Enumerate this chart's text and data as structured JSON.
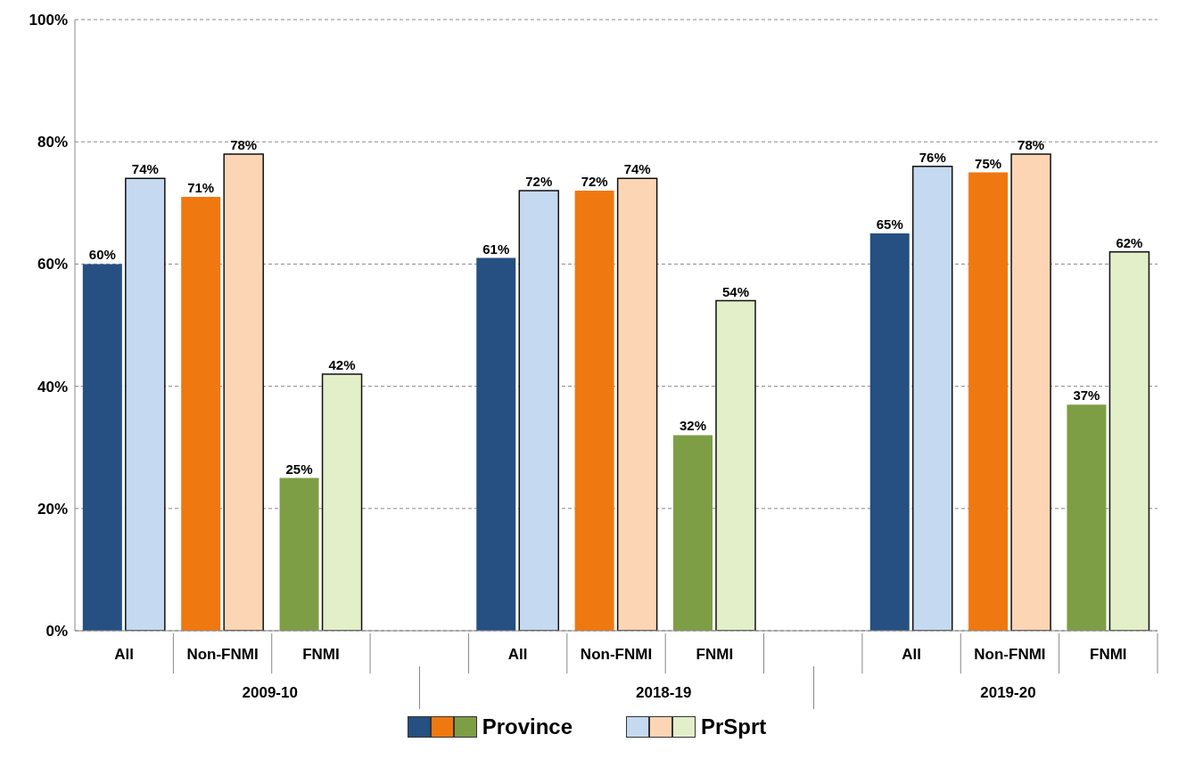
{
  "chart_data": {
    "type": "bar",
    "categories": [
      "All",
      "Non-FNMI",
      "FNMI",
      null,
      "All",
      "Non-FNMI",
      "FNMI",
      null,
      "All",
      "Non-FNMI",
      "FNMI"
    ],
    "series": [
      {
        "name": "Province",
        "colors": [
          "#264f82",
          "#f07810",
          "#7e9e45",
          null,
          "#264f82",
          "#f07810",
          "#7e9e45",
          null,
          "#264f82",
          "#f07810",
          "#7e9e45"
        ],
        "values": [
          60,
          71,
          25,
          null,
          61,
          72,
          32,
          null,
          65,
          75,
          37
        ],
        "value_labels": [
          "60%",
          "71%",
          "25%",
          null,
          "61%",
          "72%",
          "32%",
          null,
          "65%",
          "75%",
          "37%"
        ]
      },
      {
        "name": "PrSprt",
        "colors": [
          "#c5d9f1",
          "#fcd5b5",
          "#e2efc9",
          null,
          "#c5d9f1",
          "#fcd5b5",
          "#e2efc9",
          null,
          "#c5d9f1",
          "#fcd5b5",
          "#e2efc9"
        ],
        "values": [
          74,
          78,
          42,
          null,
          72,
          74,
          54,
          null,
          76,
          78,
          62
        ],
        "value_labels": [
          "74%",
          "78%",
          "42%",
          null,
          "72%",
          "74%",
          "54%",
          null,
          "76%",
          "78%",
          "62%"
        ]
      }
    ],
    "annotations": [
      "2009-10",
      "2018-19",
      "2019-20"
    ],
    "ylim": [
      0,
      100
    ],
    "yticks": [
      {
        "value": 0,
        "label": "0%"
      },
      {
        "value": 20,
        "label": "20%"
      },
      {
        "value": 40,
        "label": "40%"
      },
      {
        "value": 60,
        "label": "60%"
      },
      {
        "value": 80,
        "label": "80%"
      },
      {
        "value": 100,
        "label": "100%"
      }
    ],
    "grid": "y",
    "line_style": "dashed",
    "legend": "bottom"
  }
}
